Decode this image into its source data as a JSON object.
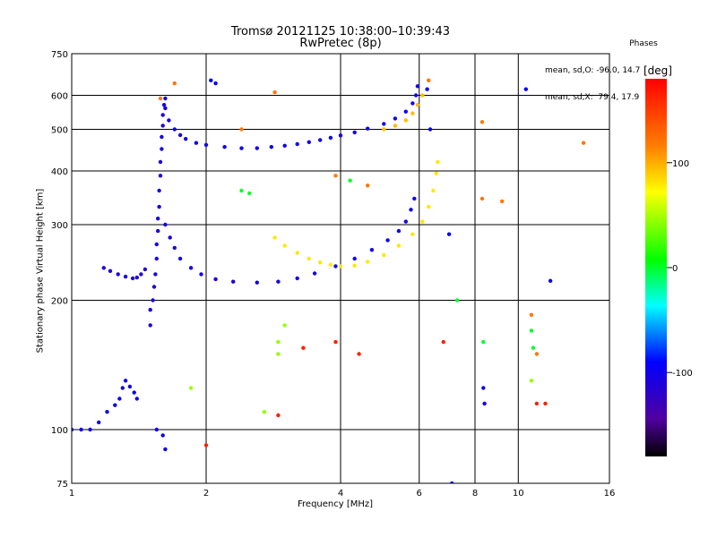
{
  "title": "Tromsø 20121125 10:38:00–10:39:43",
  "subtitle": "RwPretec (8p)",
  "phases": {
    "heading": "Phases",
    "line1": "mean, sd,O: -96.0, 14.7",
    "line2": "mean, sd,X:  79.4, 17.9"
  },
  "chart_data": {
    "type": "scatter",
    "xlabel": "Frequency [MHz]",
    "ylabel": "Stationary phase Virtual Height [km]",
    "xscale": "log",
    "yscale": "log",
    "xlim": [
      1,
      16
    ],
    "ylim": [
      75,
      750
    ],
    "xticks": [
      1,
      2,
      4,
      6,
      8,
      10,
      16
    ],
    "yticks": [
      75,
      100,
      200,
      300,
      400,
      500,
      600,
      750
    ],
    "grid": true,
    "colorbar": {
      "label": "[deg]",
      "range": [
        -180,
        180
      ],
      "ticks": [
        100,
        0,
        -100
      ],
      "colors": [
        "#000000",
        "#5000a0",
        "#0000ff",
        "#00ffff",
        "#00ff00",
        "#ffff00",
        "#ff8000",
        "#ff0000"
      ]
    },
    "series": [
      {
        "phase": -110,
        "points": [
          [
            1.18,
            238
          ],
          [
            1.22,
            234
          ],
          [
            1.27,
            230
          ],
          [
            1.32,
            227
          ],
          [
            1.37,
            225
          ],
          [
            1.4,
            226
          ],
          [
            1.43,
            230
          ],
          [
            1.46,
            236
          ]
        ]
      },
      {
        "phase": -105,
        "points": [
          [
            1.5,
            175
          ],
          [
            1.5,
            190
          ],
          [
            1.52,
            200
          ],
          [
            1.53,
            215
          ],
          [
            1.54,
            230
          ],
          [
            1.55,
            250
          ],
          [
            1.55,
            270
          ],
          [
            1.56,
            290
          ],
          [
            1.56,
            310
          ],
          [
            1.57,
            330
          ],
          [
            1.57,
            360
          ],
          [
            1.58,
            390
          ],
          [
            1.58,
            420
          ],
          [
            1.59,
            450
          ],
          [
            1.59,
            480
          ],
          [
            1.6,
            510
          ],
          [
            1.6,
            540
          ],
          [
            1.61,
            570
          ],
          [
            1.62,
            590
          ]
        ]
      },
      {
        "phase": -100,
        "points": [
          [
            1.62,
            560
          ],
          [
            1.65,
            525
          ],
          [
            1.7,
            500
          ],
          [
            1.75,
            485
          ],
          [
            1.8,
            475
          ],
          [
            1.9,
            465
          ],
          [
            2.0,
            460
          ],
          [
            2.2,
            455
          ],
          [
            2.4,
            452
          ],
          [
            2.6,
            452
          ],
          [
            2.8,
            455
          ],
          [
            3.0,
            458
          ],
          [
            3.2,
            462
          ],
          [
            3.4,
            467
          ],
          [
            3.6,
            472
          ],
          [
            3.8,
            478
          ],
          [
            4.0,
            484
          ],
          [
            4.3,
            492
          ],
          [
            4.6,
            502
          ],
          [
            5.0,
            515
          ],
          [
            5.3,
            530
          ],
          [
            5.6,
            550
          ],
          [
            5.8,
            575
          ],
          [
            5.9,
            600
          ],
          [
            5.95,
            630
          ]
        ]
      },
      {
        "phase": -102,
        "points": [
          [
            1.62,
            300
          ],
          [
            1.66,
            280
          ],
          [
            1.7,
            265
          ],
          [
            1.75,
            250
          ],
          [
            1.85,
            238
          ],
          [
            1.95,
            230
          ],
          [
            2.1,
            224
          ],
          [
            2.3,
            221
          ],
          [
            2.6,
            220
          ],
          [
            2.9,
            221
          ],
          [
            3.2,
            225
          ],
          [
            3.5,
            231
          ],
          [
            3.9,
            240
          ],
          [
            4.3,
            250
          ],
          [
            4.7,
            262
          ],
          [
            5.1,
            276
          ],
          [
            5.4,
            290
          ],
          [
            5.6,
            305
          ],
          [
            5.75,
            325
          ],
          [
            5.85,
            345
          ]
        ]
      },
      {
        "phase": 80,
        "points": [
          [
            2.85,
            280
          ],
          [
            3.0,
            268
          ],
          [
            3.2,
            258
          ],
          [
            3.4,
            250
          ],
          [
            3.6,
            245
          ],
          [
            3.8,
            242
          ],
          [
            4.0,
            240
          ],
          [
            4.3,
            241
          ],
          [
            4.6,
            246
          ],
          [
            5.0,
            255
          ],
          [
            5.4,
            268
          ],
          [
            5.8,
            285
          ],
          [
            6.1,
            305
          ],
          [
            6.3,
            330
          ],
          [
            6.45,
            360
          ],
          [
            6.55,
            395
          ],
          [
            6.6,
            420
          ]
        ]
      },
      {
        "phase": 95,
        "points": [
          [
            5.0,
            500
          ],
          [
            5.3,
            510
          ],
          [
            5.6,
            525
          ],
          [
            5.8,
            545
          ],
          [
            5.95,
            570
          ],
          [
            6.1,
            600
          ]
        ]
      },
      {
        "phase": -100,
        "points": [
          [
            1.0,
            100
          ],
          [
            1.05,
            100
          ],
          [
            1.1,
            100
          ],
          [
            1.15,
            104
          ],
          [
            1.2,
            110
          ],
          [
            1.25,
            114
          ],
          [
            1.28,
            118
          ],
          [
            1.3,
            125
          ],
          [
            1.32,
            130
          ],
          [
            1.35,
            126
          ],
          [
            1.38,
            122
          ],
          [
            1.4,
            118
          ]
        ]
      },
      {
        "phase": 120,
        "points": [
          [
            1.58,
            590
          ],
          [
            1.7,
            640
          ],
          [
            2.4,
            500
          ],
          [
            2.85,
            610
          ],
          [
            3.9,
            390
          ],
          [
            4.6,
            370
          ],
          [
            6.3,
            650
          ],
          [
            8.3,
            520
          ],
          [
            8.3,
            345
          ],
          [
            9.2,
            340
          ],
          [
            10.7,
            185
          ],
          [
            11.0,
            150
          ],
          [
            14.0,
            465
          ]
        ]
      },
      {
        "phase": 45,
        "points": [
          [
            2.7,
            110
          ],
          [
            2.9,
            150
          ],
          [
            2.9,
            160
          ],
          [
            3.0,
            175
          ],
          [
            1.85,
            125
          ],
          [
            10.7,
            130
          ]
        ]
      },
      {
        "phase": 165,
        "points": [
          [
            3.3,
            155
          ],
          [
            3.9,
            160
          ],
          [
            4.4,
            150
          ],
          [
            6.8,
            160
          ],
          [
            2.9,
            108
          ],
          [
            11.0,
            115
          ],
          [
            11.5,
            115
          ],
          [
            2.0,
            92
          ]
        ]
      },
      {
        "phase": -95,
        "points": [
          [
            1.55,
            100
          ],
          [
            1.6,
            97
          ],
          [
            1.62,
            90
          ],
          [
            2.05,
            650
          ],
          [
            2.1,
            640
          ],
          [
            6.35,
            500
          ],
          [
            6.25,
            620
          ],
          [
            7.0,
            285
          ],
          [
            8.35,
            125
          ],
          [
            8.4,
            115
          ],
          [
            10.4,
            620
          ],
          [
            11.8,
            222
          ],
          [
            7.1,
            75
          ]
        ]
      },
      {
        "phase": 0,
        "points": [
          [
            7.3,
            200
          ],
          [
            8.35,
            160
          ],
          [
            10.7,
            170
          ],
          [
            10.8,
            155
          ],
          [
            2.4,
            360
          ],
          [
            2.5,
            355
          ],
          [
            4.2,
            380
          ]
        ]
      }
    ]
  }
}
